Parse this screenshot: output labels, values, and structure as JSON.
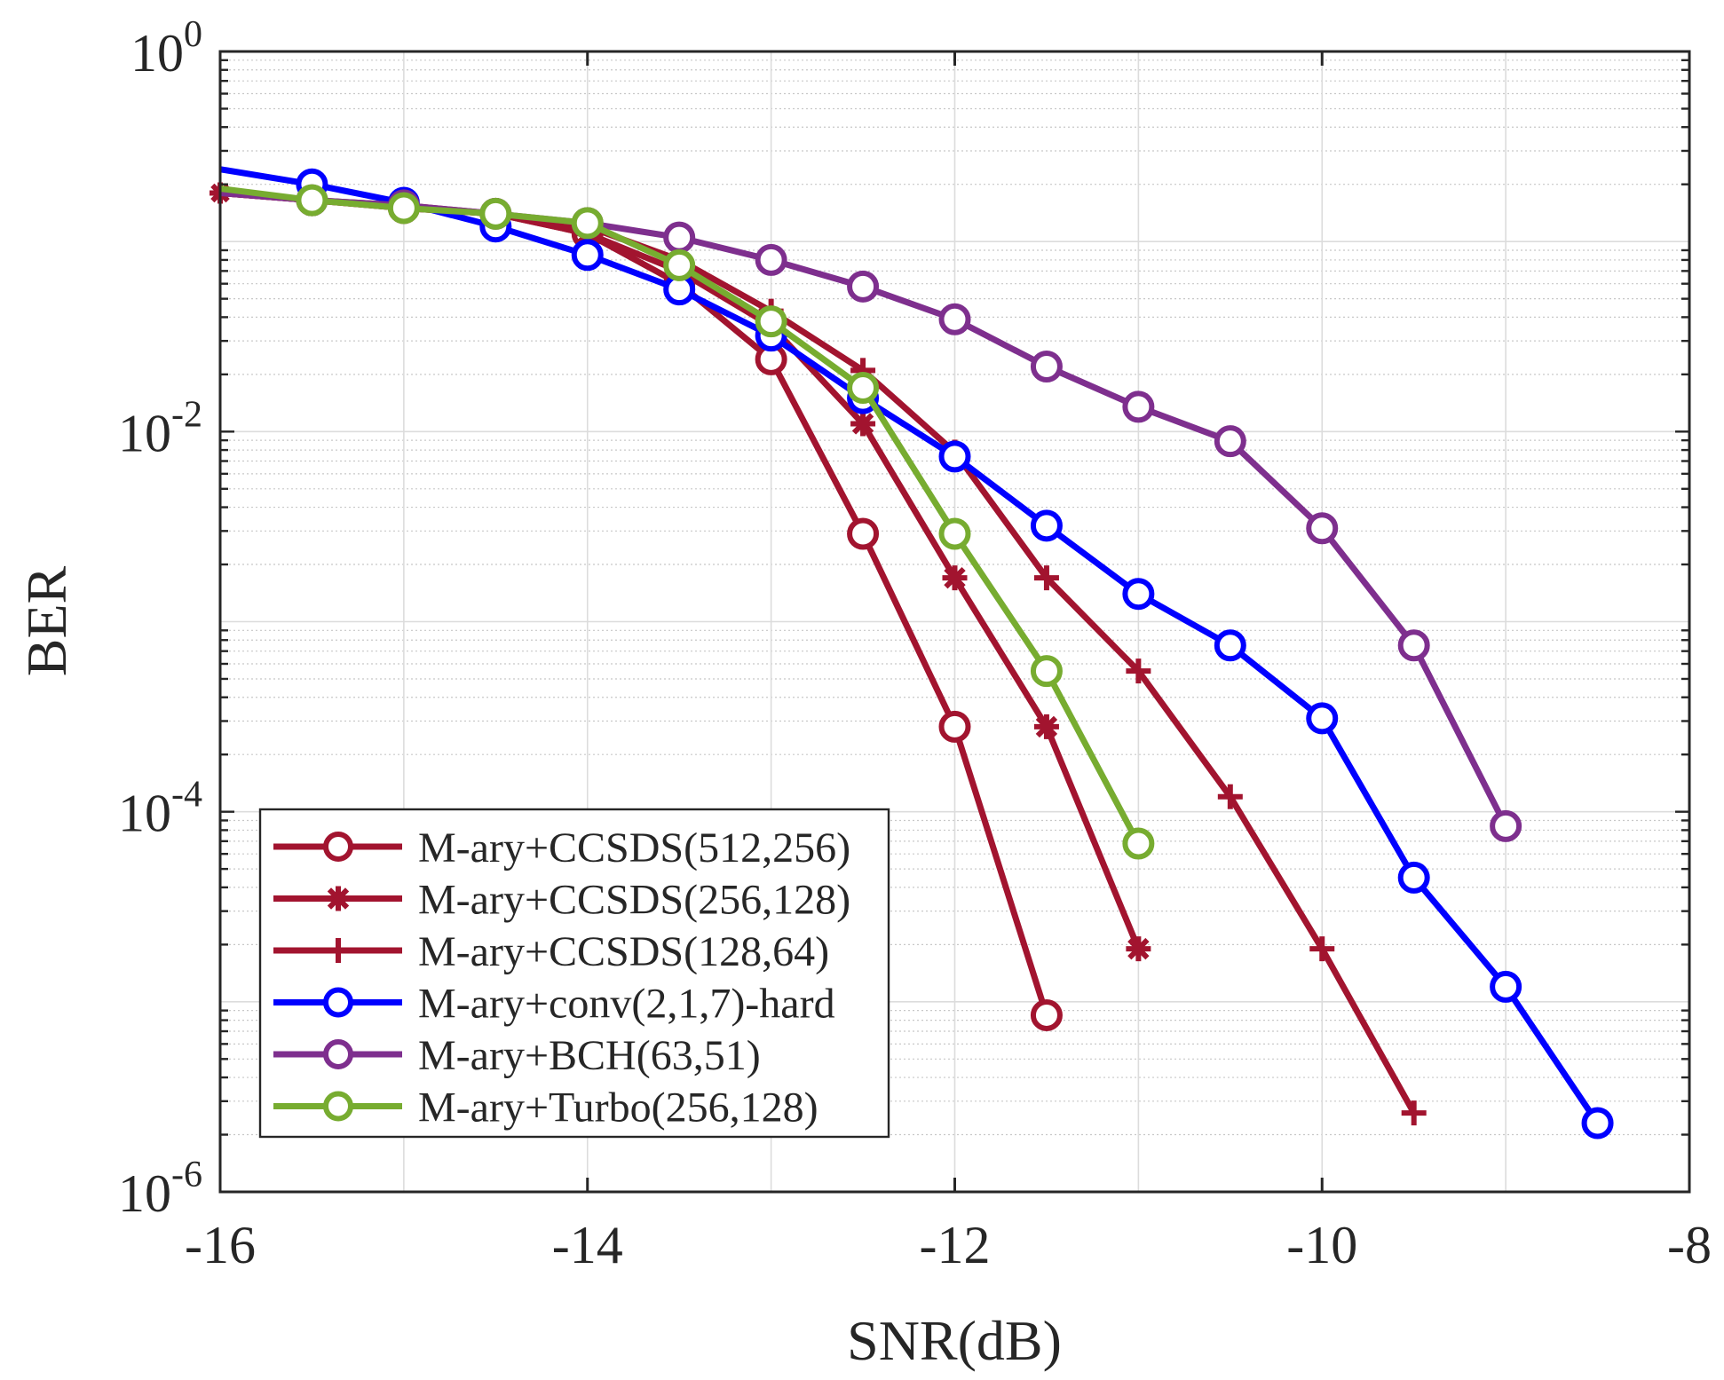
{
  "chart_data": {
    "type": "line",
    "title": "",
    "xlabel": "SNR(dB)",
    "ylabel": "BER",
    "xlim": [
      -16,
      -8
    ],
    "ylim_log10": [
      -6,
      0
    ],
    "yscale": "log",
    "grid": true,
    "minor_grid": true,
    "legend_position": "bottom-left",
    "x_ticks": [
      -16,
      -14,
      -12,
      -10,
      -8
    ],
    "x_tick_labels": [
      "-16",
      "-14",
      "-12",
      "-10",
      "-8"
    ],
    "y_ticks": [
      {
        "base": "10",
        "exp": "0",
        "value": 1
      },
      {
        "base": "10",
        "exp": "-2",
        "value": 0.01
      },
      {
        "base": "10",
        "exp": "-4",
        "value": 0.0001
      },
      {
        "base": "10",
        "exp": "-6",
        "value": 1e-06
      }
    ],
    "series": [
      {
        "name": "M-ary+CCSDS(512,256)",
        "color": "#A2142F",
        "marker": "circle",
        "x": [
          -16,
          -15.5,
          -15,
          -14.5,
          -14,
          -13.5,
          -13,
          -12.5,
          -12,
          -11.5
        ],
        "y": [
          0.18,
          0.165,
          0.15,
          0.14,
          0.11,
          0.06,
          0.024,
          0.0029,
          0.00028,
          8.5e-06
        ]
      },
      {
        "name": "M-ary+CCSDS(256,128)",
        "color": "#A2142F",
        "marker": "asterisk",
        "x": [
          -16,
          -15.5,
          -15,
          -14.5,
          -14,
          -13.5,
          -13,
          -12.5,
          -12,
          -11.5,
          -11
        ],
        "y": [
          0.18,
          0.165,
          0.15,
          0.14,
          0.11,
          0.07,
          0.036,
          0.011,
          0.0017,
          0.00028,
          1.9e-05
        ]
      },
      {
        "name": "M-ary+CCSDS(128,64)",
        "color": "#A2142F",
        "marker": "plus",
        "x": [
          -16,
          -15.5,
          -15,
          -14.5,
          -14,
          -13.5,
          -13,
          -12.5,
          -12,
          -11.5,
          -11,
          -10.5,
          -10,
          -9.5
        ],
        "y": [
          0.18,
          0.165,
          0.155,
          0.14,
          0.12,
          0.08,
          0.043,
          0.021,
          0.0078,
          0.0017,
          0.00055,
          0.00012,
          1.9e-05,
          2.6e-06
        ]
      },
      {
        "name": "M-ary+conv(2,1,7)-hard",
        "color": "#0000FF",
        "marker": "circle",
        "x": [
          -16,
          -15.5,
          -15,
          -14.5,
          -14,
          -13.5,
          -13,
          -12.5,
          -12,
          -11.5,
          -11,
          -10.5,
          -10,
          -9.5,
          -9,
          -8.5
        ],
        "y": [
          0.24,
          0.2,
          0.16,
          0.12,
          0.085,
          0.056,
          0.032,
          0.015,
          0.0074,
          0.0032,
          0.0014,
          0.00075,
          0.00031,
          4.5e-05,
          1.2e-05,
          2.3e-06
        ]
      },
      {
        "name": "M-ary+BCH(63,51)",
        "color": "#7E2F8E",
        "marker": "circle",
        "x": [
          -16,
          -15.5,
          -15,
          -14.5,
          -14,
          -13.5,
          -13,
          -12.5,
          -12,
          -11.5,
          -11,
          -10.5,
          -10,
          -9.5,
          -9
        ],
        "y": [
          0.18,
          0.165,
          0.155,
          0.14,
          0.125,
          0.105,
          0.08,
          0.058,
          0.039,
          0.022,
          0.0135,
          0.0089,
          0.0031,
          0.00075,
          8.4e-05
        ]
      },
      {
        "name": "M-ary+Turbo(256,128)",
        "color": "#77AC30",
        "marker": "circle",
        "x": [
          -16,
          -15.5,
          -15,
          -14.5,
          -14,
          -13.5,
          -13,
          -12.5,
          -12,
          -11.5,
          -11
        ],
        "y": [
          0.19,
          0.165,
          0.15,
          0.14,
          0.125,
          0.075,
          0.038,
          0.017,
          0.0029,
          0.00055,
          6.8e-05
        ]
      }
    ]
  }
}
